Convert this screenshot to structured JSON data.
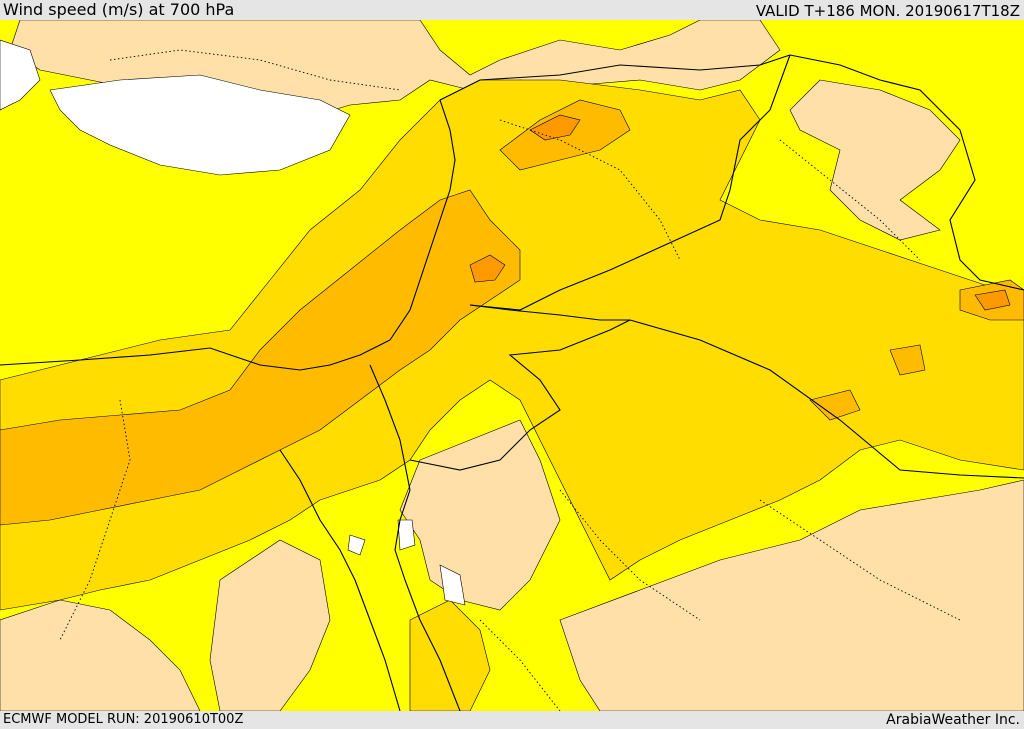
{
  "header": {
    "title": "Wind speed (m/s) at 700 hPa",
    "valid": "VALID T+186 MON. 20190617T18Z"
  },
  "footer": {
    "model_run": "ECMWF MODEL RUN: 20190610T00Z",
    "brand": "ArabiaWeather Inc."
  },
  "colors": {
    "sea_or_missing": "#ffffff",
    "lowest_band": "#ffe0a8",
    "low_band": "#ffff00",
    "mid_band": "#ffdd00",
    "high_band": "#ffbb00",
    "highest_band": "#ff9900",
    "boundary": "#000000"
  },
  "map_layers": [
    {
      "name": "sea-area",
      "fill_key": "sea_or_missing"
    },
    {
      "name": "light-wind-area",
      "fill_key": "lowest_band"
    },
    {
      "name": "moderate-wind-area",
      "fill_key": "mid_band"
    },
    {
      "name": "strong-wind-area",
      "fill_key": "high_band"
    },
    {
      "name": "strongest-wind-area",
      "fill_key": "highest_band"
    }
  ]
}
